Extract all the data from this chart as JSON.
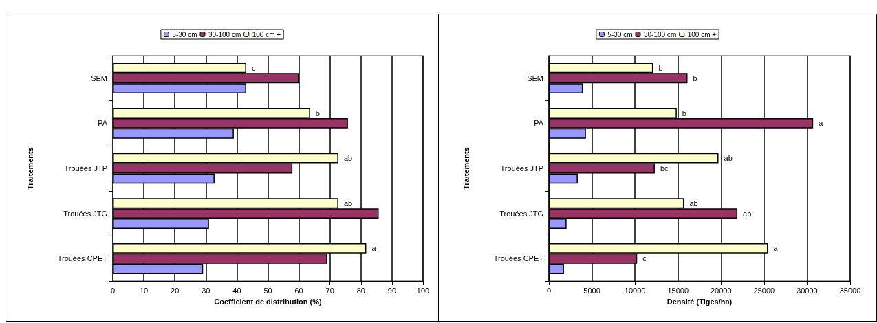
{
  "chart_data": [
    {
      "type": "bar",
      "orientation": "horizontal",
      "xlabel": "Coefficient de distribution (%)",
      "ylabel": "Traitements",
      "categories": [
        "SEM",
        "PA",
        "Trouées JTP",
        "Trouées JTG",
        "Trouées CPET"
      ],
      "series": [
        {
          "name": "5-30 cm",
          "color": "#9999ff",
          "values": [
            43,
            39,
            32.8,
            31,
            29.1
          ]
        },
        {
          "name": "30-100 cm",
          "color": "#993366",
          "values": [
            60,
            75.8,
            57.9,
            85.7,
            69.1
          ]
        },
        {
          "name": "100 cm +",
          "color": "#ffffcc",
          "values": [
            43,
            63.6,
            72.7,
            72.7,
            81.7
          ],
          "value_labels": [
            "c",
            "b",
            "ab",
            "ab",
            "a"
          ]
        }
      ],
      "xlim": [
        0,
        100
      ],
      "xticks": [
        0,
        10,
        20,
        30,
        40,
        50,
        60,
        70,
        80,
        90,
        100
      ],
      "grid": "x",
      "legend": "top"
    },
    {
      "type": "bar",
      "orientation": "horizontal",
      "xlabel": "Densité (Tiges/ha)",
      "ylabel": "Traitements",
      "categories": [
        "SEM",
        "PA",
        "Trouées JTP",
        "Trouées JTG",
        "Trouées CPET"
      ],
      "series": [
        {
          "name": "5-30 cm",
          "color": "#9999ff",
          "values": [
            3950,
            4300,
            3350,
            2050,
            1750
          ]
        },
        {
          "name": "30-100 cm",
          "color": "#993366",
          "values": [
            16100,
            30700,
            12300,
            21900,
            10250
          ],
          "value_labels": [
            "b",
            "a",
            "bc",
            "ab",
            "c"
          ]
        },
        {
          "name": "100 cm +",
          "color": "#ffffcc",
          "values": [
            12100,
            14850,
            19700,
            15700,
            25450
          ],
          "value_labels": [
            "b",
            "b",
            "ab",
            "ab",
            "a"
          ]
        }
      ],
      "xlim": [
        0,
        35000
      ],
      "xticks": [
        0,
        5000,
        10000,
        15000,
        20000,
        25000,
        30000,
        35000
      ],
      "grid": "x",
      "legend": "top"
    }
  ]
}
